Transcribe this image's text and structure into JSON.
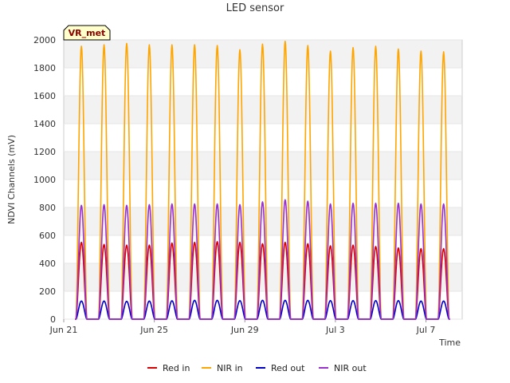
{
  "chart_data": {
    "type": "line",
    "title": "LED sensor",
    "xlabel": "Time",
    "ylabel": "NDVI Channels (mV)",
    "badge": "VR_met",
    "ylim": [
      0,
      2000
    ],
    "yticks": [
      0,
      200,
      400,
      600,
      800,
      1000,
      1200,
      1400,
      1600,
      1800,
      2000
    ],
    "xlim": [
      0,
      17.6
    ],
    "xticks": [
      {
        "value": 0,
        "label": "Jun 21"
      },
      {
        "value": 4,
        "label": "Jun 25"
      },
      {
        "value": 8,
        "label": "Jun 29"
      },
      {
        "value": 12,
        "label": "Jul 3"
      },
      {
        "value": 16,
        "label": "Jul 7"
      }
    ],
    "day_peak_x": [
      0.78,
      1.78,
      2.78,
      3.78,
      4.78,
      5.78,
      6.78,
      7.78,
      8.78,
      9.78,
      10.78,
      11.78,
      12.78,
      13.78,
      14.78,
      15.78,
      16.78
    ],
    "series": [
      {
        "name": "Red in",
        "color": "#dd0000",
        "peaks": [
          550,
          535,
          530,
          530,
          545,
          550,
          555,
          550,
          540,
          550,
          540,
          525,
          530,
          520,
          510,
          505,
          505
        ]
      },
      {
        "name": "NIR in",
        "color": "#ffa500",
        "peaks": [
          1955,
          1965,
          1975,
          1965,
          1965,
          1965,
          1960,
          1930,
          1970,
          1990,
          1960,
          1920,
          1945,
          1955,
          1935,
          1920,
          1915
        ]
      },
      {
        "name": "Red out",
        "color": "#0000cc",
        "peaks": [
          130,
          130,
          128,
          130,
          132,
          135,
          135,
          133,
          135,
          135,
          135,
          133,
          133,
          133,
          133,
          130,
          130
        ]
      },
      {
        "name": "NIR out",
        "color": "#9932cc",
        "peaks": [
          815,
          820,
          815,
          820,
          825,
          825,
          825,
          820,
          840,
          855,
          845,
          825,
          830,
          830,
          830,
          825,
          825
        ]
      }
    ],
    "legend_position": "bottom-center",
    "grid": true
  }
}
